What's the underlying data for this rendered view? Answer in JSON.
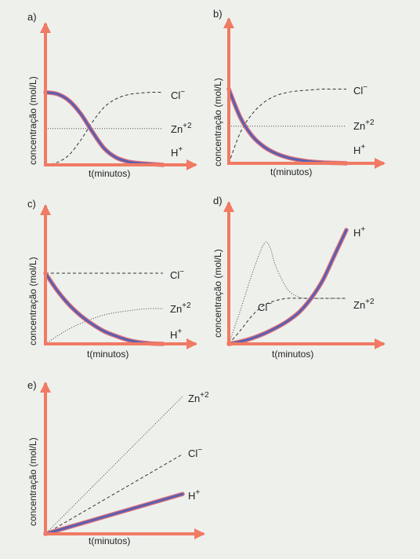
{
  "colors": {
    "axis": "#f07a63",
    "h_plus_outline": "#e0707a",
    "h_plus_fill": "#5a5fb0",
    "dashed": "#333333",
    "dotted": "#444444",
    "background": "#eef0ec"
  },
  "chart_data": [
    {
      "panel": "a)",
      "type": "line",
      "xlabel": "t(minutos)",
      "ylabel": "concentração (mol/L)",
      "series": [
        {
          "name": "Cl⁻",
          "style": "dashed",
          "x": [
            0,
            1,
            2,
            3,
            4,
            5,
            6,
            7,
            8,
            9,
            10
          ],
          "y": [
            0.0,
            0.03,
            0.12,
            0.3,
            0.52,
            0.7,
            0.8,
            0.85,
            0.87,
            0.88,
            0.88
          ]
        },
        {
          "name": "Zn⁺²",
          "style": "dotted",
          "x": [
            0,
            10
          ],
          "y": [
            0.44,
            0.44
          ]
        },
        {
          "name": "H⁺",
          "style": "thick",
          "x": [
            0,
            1,
            2,
            3,
            4,
            5,
            6,
            7,
            8,
            9,
            10
          ],
          "y": [
            0.88,
            0.86,
            0.78,
            0.62,
            0.4,
            0.2,
            0.09,
            0.04,
            0.02,
            0.01,
            0.0
          ]
        }
      ],
      "labels": {
        "cl": "Cl",
        "zn": "Zn",
        "zn_sup": "+2",
        "h": "H",
        "h_sup": "+"
      }
    },
    {
      "panel": "b)",
      "type": "line",
      "xlabel": "t(minutos)",
      "ylabel": "concentração (mol/L)",
      "series": [
        {
          "name": "Cl⁻",
          "style": "dashed",
          "x": [
            0,
            1,
            2,
            3,
            4,
            5,
            6,
            7,
            8,
            9,
            10
          ],
          "y": [
            0.0,
            0.38,
            0.6,
            0.74,
            0.82,
            0.86,
            0.88,
            0.89,
            0.9,
            0.9,
            0.9
          ]
        },
        {
          "name": "Zn⁺²",
          "style": "dotted",
          "x": [
            0,
            10
          ],
          "y": [
            0.45,
            0.45
          ]
        },
        {
          "name": "H⁺",
          "style": "thick",
          "x": [
            0,
            1,
            2,
            3,
            4,
            5,
            6,
            7,
            8,
            9,
            10
          ],
          "y": [
            0.9,
            0.55,
            0.33,
            0.2,
            0.12,
            0.07,
            0.04,
            0.02,
            0.01,
            0.005,
            0.0
          ]
        }
      ],
      "labels": {
        "cl": "Cl",
        "zn": "Zn",
        "zn_sup": "+2",
        "h": "H",
        "h_sup": "+"
      }
    },
    {
      "panel": "c)",
      "type": "line",
      "xlabel": "t(minutos)",
      "ylabel": "concentração (mol/L)",
      "series": [
        {
          "name": "Cl⁻",
          "style": "dashed",
          "x": [
            0,
            10
          ],
          "y": [
            0.9,
            0.9
          ]
        },
        {
          "name": "Zn⁺²",
          "style": "dotted",
          "x": [
            0,
            1,
            2,
            3,
            4,
            5,
            6,
            7,
            8,
            9,
            10
          ],
          "y": [
            0.0,
            0.1,
            0.19,
            0.26,
            0.32,
            0.37,
            0.4,
            0.42,
            0.44,
            0.45,
            0.45
          ]
        },
        {
          "name": "H⁺",
          "style": "thick",
          "x": [
            0,
            1,
            2,
            3,
            4,
            5,
            6,
            7,
            8,
            9,
            10
          ],
          "y": [
            0.9,
            0.68,
            0.5,
            0.36,
            0.25,
            0.16,
            0.1,
            0.05,
            0.02,
            0.005,
            0.0
          ]
        }
      ],
      "labels": {
        "cl": "Cl",
        "zn": "Zn",
        "zn_sup": "+2",
        "h": "H",
        "h_sup": "+"
      }
    },
    {
      "panel": "d)",
      "type": "line",
      "xlabel": "t(minutos)",
      "ylabel": "concentração (mol/L)",
      "series": [
        {
          "name": "Cl⁻",
          "style": "dashed",
          "x": [
            0,
            1,
            2,
            3,
            4,
            5,
            6,
            7,
            8,
            9,
            10
          ],
          "y": [
            0.0,
            0.12,
            0.25,
            0.34,
            0.38,
            0.4,
            0.4,
            0.4,
            0.4,
            0.4,
            0.4
          ]
        },
        {
          "name": "Zn⁺²",
          "style": "dotted",
          "x": [
            0,
            1,
            2,
            3,
            3.5,
            4,
            5,
            6,
            7,
            8,
            10
          ],
          "y": [
            0.0,
            0.3,
            0.62,
            0.88,
            0.85,
            0.68,
            0.48,
            0.41,
            0.4,
            0.4,
            0.4
          ]
        },
        {
          "name": "H⁺",
          "style": "thick",
          "x": [
            0,
            1,
            2,
            3,
            4,
            5,
            6,
            7,
            8,
            9,
            10
          ],
          "y": [
            0.0,
            0.02,
            0.05,
            0.09,
            0.14,
            0.2,
            0.28,
            0.4,
            0.56,
            0.78,
            1.0
          ]
        }
      ],
      "labels": {
        "cl": "Cl",
        "zn": "Zn",
        "zn_sup": "+2",
        "h": "H",
        "h_sup": "+"
      }
    },
    {
      "panel": "e)",
      "type": "line",
      "xlabel": "t(minutos)",
      "ylabel": "concentração (mol/L)",
      "series": [
        {
          "name": "Zn⁺²",
          "style": "dotted",
          "x": [
            0,
            10
          ],
          "y": [
            0.0,
            1.0
          ]
        },
        {
          "name": "Cl⁻",
          "style": "dashed",
          "x": [
            0,
            10
          ],
          "y": [
            0.0,
            0.58
          ]
        },
        {
          "name": "H⁺",
          "style": "thick",
          "x": [
            0,
            10
          ],
          "y": [
            0.0,
            0.29
          ]
        }
      ],
      "labels": {
        "cl": "Cl",
        "zn": "Zn",
        "zn_sup": "+2",
        "h": "H",
        "h_sup": "+"
      }
    }
  ]
}
